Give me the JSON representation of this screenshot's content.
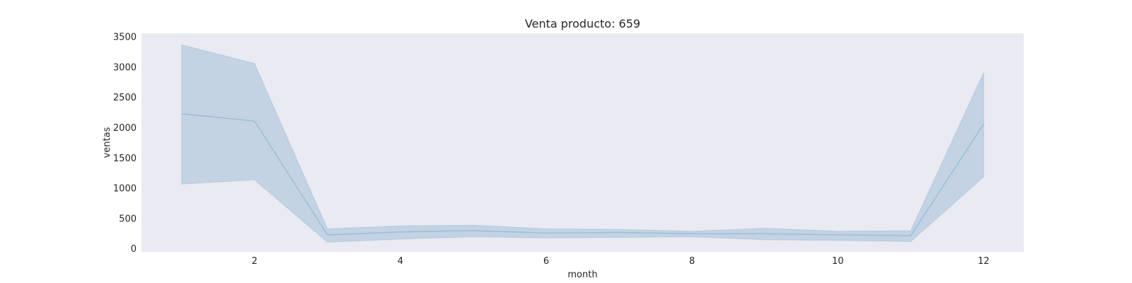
{
  "chart_data": {
    "type": "line",
    "title": "Venta producto: 659",
    "xlabel": "month",
    "ylabel": "ventas",
    "xlim": [
      0.45,
      12.55
    ],
    "ylim": [
      -50,
      3560
    ],
    "xticks": [
      2,
      4,
      6,
      8,
      10,
      12
    ],
    "yticks": [
      0,
      500,
      1000,
      1500,
      2000,
      2500,
      3000,
      3500
    ],
    "grid": false,
    "series": [
      {
        "x": [
          1,
          2,
          3,
          4,
          5,
          6,
          7,
          8,
          9,
          10,
          11,
          12
        ],
        "values": [
          2230,
          2110,
          230,
          280,
          300,
          260,
          270,
          250,
          250,
          230,
          220,
          2060
        ],
        "ci_low": [
          1070,
          1140,
          110,
          160,
          200,
          180,
          190,
          200,
          150,
          140,
          120,
          1190
        ],
        "ci_high": [
          3370,
          3060,
          330,
          380,
          390,
          330,
          320,
          290,
          340,
          290,
          300,
          2910
        ]
      }
    ],
    "colors": {
      "background": "#eaeaf2",
      "line": "#9ebfda",
      "band": "#c3d3e3"
    }
  }
}
